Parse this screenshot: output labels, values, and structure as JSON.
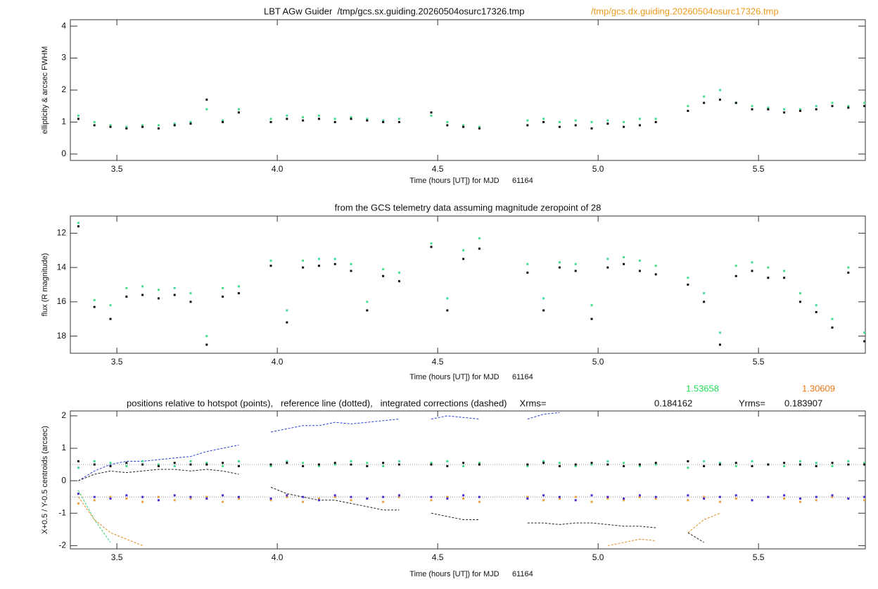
{
  "chart_data": [
    {
      "type": "scatter",
      "title_parts": [
        {
          "text": "LBT AGw Guider  /tmp/gcs.sx.guiding.20260504osurc17326.tmp",
          "color": "#111111"
        },
        {
          "text": "/tmp/gcs.dx.guiding.20260504osurc17326.tmp",
          "color": "#ee9a1a"
        }
      ],
      "x_label": "Time (hours [UT]) for MJD      61164",
      "y_label": "ellipticity & arcsec FWHM",
      "xlim": [
        3.355,
        5.833
      ],
      "ylim": [
        -0.2,
        4.2
      ],
      "xticks": [
        3.5,
        {
          "value": 4,
          "label": "4.0"
        },
        4.5,
        {
          "value": 5,
          "label": "5.0"
        },
        5.5
      ],
      "yticks": [
        0,
        1,
        2,
        3,
        4
      ],
      "x": [
        3.38,
        3.43,
        3.48,
        3.53,
        3.58,
        3.63,
        3.68,
        3.73,
        3.78,
        3.83,
        3.88,
        3.93,
        3.98,
        4.03,
        4.08,
        4.13,
        4.18,
        4.23,
        4.28,
        4.33,
        4.38,
        4.43,
        4.48,
        4.53,
        4.58,
        4.63,
        4.68,
        4.73,
        4.78,
        4.83,
        4.88,
        4.93,
        4.98,
        5.03,
        5.08,
        5.13,
        5.18,
        5.23,
        5.28,
        5.33,
        5.38,
        5.43,
        5.48,
        5.53,
        5.58,
        5.63,
        5.68,
        5.73,
        5.78,
        5.83
      ],
      "series": [
        {
          "mode": "markers",
          "color": "#45dc92",
          "values": [
            1.2,
            1.0,
            0.9,
            0.85,
            0.9,
            0.9,
            0.95,
            1.0,
            1.4,
            1.05,
            1.4,
            null,
            1.1,
            1.2,
            1.15,
            1.2,
            1.1,
            1.15,
            1.1,
            1.05,
            1.1,
            null,
            1.2,
            1.0,
            0.9,
            0.85,
            null,
            null,
            1.05,
            1.1,
            1.0,
            1.05,
            1.0,
            1.05,
            1.0,
            1.1,
            1.1,
            null,
            1.5,
            1.8,
            2.0,
            1.6,
            1.5,
            1.45,
            1.4,
            1.4,
            1.5,
            1.6,
            1.5,
            1.6
          ]
        },
        {
          "mode": "markers",
          "color": "#111111",
          "values": [
            1.1,
            0.9,
            0.85,
            0.8,
            0.85,
            0.8,
            0.9,
            0.95,
            1.7,
            1.0,
            1.3,
            null,
            1.0,
            1.1,
            1.05,
            1.1,
            1.0,
            1.1,
            1.05,
            1.0,
            1.0,
            null,
            1.3,
            0.9,
            0.85,
            0.8,
            null,
            null,
            0.9,
            1.0,
            0.85,
            0.9,
            0.8,
            0.95,
            0.85,
            0.9,
            1.0,
            null,
            1.35,
            1.6,
            1.7,
            1.6,
            1.4,
            1.4,
            1.3,
            1.35,
            1.4,
            1.5,
            1.45,
            1.5
          ]
        }
      ]
    },
    {
      "type": "scatter",
      "title_parts": [
        {
          "text": "from the GCS telemetry data assuming magnitude zeropoint of 28",
          "color": "#111111"
        }
      ],
      "x_label": "Time (hours [UT]) for MJD      61164",
      "y_label": "flux (R magnitude)",
      "xlim": [
        3.355,
        5.833
      ],
      "ylim": [
        19,
        11
      ],
      "xticks": [
        3.5,
        {
          "value": 4,
          "label": "4.0"
        },
        4.5,
        {
          "value": 5,
          "label": "5.0"
        },
        5.5
      ],
      "yticks": [
        12,
        14,
        16,
        18
      ],
      "x": [
        3.38,
        3.43,
        3.48,
        3.53,
        3.58,
        3.63,
        3.68,
        3.73,
        3.78,
        3.83,
        3.88,
        3.93,
        3.98,
        4.03,
        4.08,
        4.13,
        4.18,
        4.23,
        4.28,
        4.33,
        4.38,
        4.43,
        4.48,
        4.53,
        4.58,
        4.63,
        4.68,
        4.73,
        4.78,
        4.83,
        4.88,
        4.93,
        4.98,
        5.03,
        5.08,
        5.13,
        5.18,
        5.23,
        5.28,
        5.33,
        5.38,
        5.43,
        5.48,
        5.53,
        5.58,
        5.63,
        5.68,
        5.73,
        5.78,
        5.83
      ],
      "series": [
        {
          "mode": "markers",
          "color": "#45dc92",
          "values": [
            11.4,
            15.9,
            16.2,
            15.2,
            15.1,
            15.3,
            15.2,
            15.5,
            18.0,
            15.2,
            15.1,
            null,
            13.6,
            16.5,
            13.6,
            13.5,
            13.5,
            13.8,
            16.0,
            14.1,
            14.3,
            null,
            12.6,
            15.8,
            13.0,
            12.3,
            null,
            null,
            13.8,
            15.8,
            13.7,
            13.8,
            16.2,
            13.5,
            13.4,
            13.6,
            13.9,
            null,
            14.6,
            15.5,
            17.8,
            13.9,
            13.7,
            14.0,
            14.2,
            15.5,
            16.2,
            17.0,
            14.0,
            17.8
          ]
        },
        {
          "mode": "markers",
          "color": "#111111",
          "values": [
            11.6,
            16.3,
            17.0,
            15.7,
            15.6,
            15.8,
            15.6,
            16.0,
            18.5,
            15.7,
            15.5,
            null,
            13.9,
            17.2,
            14.0,
            13.9,
            13.8,
            14.2,
            16.5,
            14.5,
            14.8,
            null,
            12.8,
            16.5,
            13.5,
            12.9,
            null,
            null,
            14.3,
            16.5,
            14.0,
            14.2,
            17.0,
            14.0,
            13.8,
            14.2,
            14.4,
            null,
            15.0,
            16.0,
            18.5,
            14.5,
            14.2,
            14.6,
            14.6,
            16.0,
            16.6,
            17.5,
            14.3,
            18.3
          ]
        }
      ]
    },
    {
      "type": "scatter",
      "title_parts": [
        {
          "text": "positions relative to hotspot (points),   reference line (dotted),   integrated corrections (dashed)     Xrms=",
          "color": "#111111"
        }
      ],
      "stats": [
        {
          "value": 0.184162,
          "note": 1.53658,
          "note_color": "#22dd55"
        },
        {
          "label": "Yrms=",
          "value": 0.183907,
          "note": 1.30609,
          "note_color": "#ee7a10"
        }
      ],
      "x_label": "Time (hours [UT]) for MJD      61164",
      "y_label": "X+0.5 / Y-0.5 centroids (arcsec)",
      "xlim": [
        3.355,
        5.833
      ],
      "ylim": [
        -2.1,
        2.15
      ],
      "xticks": [
        3.5,
        {
          "value": 4,
          "label": "4.0"
        },
        4.5,
        {
          "value": 5,
          "label": "5.0"
        },
        5.5
      ],
      "yticks": [
        -2,
        -1,
        0,
        1,
        2
      ],
      "reference_lines": [
        0.5,
        -0.5
      ],
      "x": [
        3.38,
        3.43,
        3.48,
        3.53,
        3.58,
        3.63,
        3.68,
        3.73,
        3.78,
        3.83,
        3.88,
        3.93,
        3.98,
        4.03,
        4.08,
        4.13,
        4.18,
        4.23,
        4.28,
        4.33,
        4.38,
        4.43,
        4.48,
        4.53,
        4.58,
        4.63,
        4.68,
        4.73,
        4.78,
        4.83,
        4.88,
        4.93,
        4.98,
        5.03,
        5.08,
        5.13,
        5.18,
        5.23,
        5.28,
        5.33,
        5.38,
        5.43,
        5.48,
        5.53,
        5.58,
        5.63,
        5.68,
        5.73,
        5.78,
        5.83
      ],
      "series": [
        {
          "mode": "dashed",
          "color": "#2b3bd6",
          "values": [
            0.0,
            0.3,
            0.5,
            0.6,
            0.6,
            0.65,
            0.7,
            0.75,
            0.9,
            1.0,
            1.1,
            null,
            1.5,
            1.6,
            1.7,
            1.7,
            1.8,
            1.75,
            1.8,
            1.85,
            1.9,
            null,
            1.9,
            2.0,
            1.95,
            1.9,
            null,
            null,
            1.9,
            2.05,
            2.1,
            null,
            null,
            null,
            null,
            null,
            null,
            null,
            null,
            null,
            null,
            null,
            null,
            null,
            null,
            null,
            null,
            null,
            null,
            null
          ]
        },
        {
          "mode": "dashed",
          "color": "#222222",
          "values": [
            0.0,
            0.2,
            0.3,
            0.25,
            0.3,
            0.35,
            0.35,
            0.3,
            0.35,
            0.3,
            0.2,
            null,
            -0.2,
            -0.4,
            -0.5,
            -0.6,
            -0.6,
            -0.7,
            -0.8,
            -0.9,
            -0.9,
            null,
            -1.0,
            -1.1,
            -1.2,
            -1.2,
            null,
            null,
            -1.3,
            -1.3,
            -1.35,
            -1.3,
            -1.3,
            -1.35,
            -1.4,
            -1.4,
            -1.45,
            null,
            -1.6,
            -1.9,
            null,
            null,
            null,
            null,
            null,
            null,
            null,
            null,
            null,
            null
          ]
        },
        {
          "mode": "dashed",
          "color": "#2fd070",
          "values": [
            -0.3,
            -1.2,
            -1.9,
            null,
            null,
            null,
            null,
            null,
            null,
            null,
            null,
            null,
            null,
            null,
            null,
            null,
            null,
            null,
            null,
            null,
            null,
            null,
            null,
            null,
            null,
            null,
            null,
            null,
            null,
            null,
            null,
            null,
            null,
            null,
            null,
            null,
            null,
            null,
            null,
            null,
            null,
            null,
            null,
            null,
            null,
            null,
            null,
            null,
            null,
            null
          ]
        },
        {
          "mode": "dashed",
          "color": "#e08a20",
          "values": [
            -0.5,
            -1.2,
            -1.6,
            -1.8,
            -2.0,
            null,
            null,
            null,
            null,
            null,
            null,
            null,
            null,
            null,
            null,
            null,
            null,
            null,
            null,
            null,
            null,
            null,
            null,
            null,
            null,
            null,
            null,
            null,
            null,
            null,
            null,
            null,
            null,
            -2.0,
            -1.9,
            -1.8,
            -1.85,
            null,
            -1.6,
            -1.2,
            -1.0,
            null,
            null,
            null,
            null,
            null,
            null,
            null,
            null,
            null
          ]
        },
        {
          "mode": "markers",
          "color": "#45dc92",
          "values": [
            0.4,
            0.6,
            0.55,
            0.45,
            0.6,
            0.5,
            0.45,
            0.6,
            0.55,
            0.45,
            0.6,
            null,
            0.45,
            0.6,
            0.55,
            0.45,
            0.5,
            0.6,
            0.55,
            0.45,
            0.6,
            null,
            0.55,
            0.6,
            0.45,
            0.55,
            null,
            null,
            0.45,
            0.6,
            0.55,
            0.45,
            0.5,
            0.6,
            0.55,
            0.45,
            0.5,
            null,
            0.4,
            0.6,
            0.55,
            0.45,
            0.6,
            0.5,
            0.45,
            0.6,
            0.55,
            0.45,
            0.6,
            0.55
          ]
        },
        {
          "mode": "markers",
          "color": "#111111",
          "values": [
            0.6,
            0.5,
            0.45,
            0.55,
            0.5,
            0.45,
            0.55,
            0.5,
            0.5,
            0.55,
            0.45,
            null,
            0.5,
            0.55,
            0.45,
            0.5,
            0.55,
            0.5,
            0.45,
            0.55,
            0.5,
            null,
            0.5,
            0.45,
            0.55,
            0.5,
            null,
            null,
            0.5,
            0.55,
            0.45,
            0.5,
            0.55,
            0.5,
            0.45,
            0.5,
            0.55,
            null,
            0.6,
            0.45,
            0.5,
            0.55,
            0.45,
            0.5,
            0.55,
            0.5,
            0.45,
            0.55,
            0.5,
            0.5
          ]
        },
        {
          "mode": "markers",
          "color": "#e8a040",
          "values": [
            -0.7,
            -0.6,
            -0.5,
            -0.55,
            -0.65,
            -0.5,
            -0.6,
            -0.55,
            -0.5,
            -0.65,
            -0.55,
            null,
            -0.6,
            -0.5,
            -0.65,
            -0.55,
            -0.5,
            -0.6,
            -0.55,
            -0.65,
            -0.5,
            null,
            -0.6,
            -0.5,
            -0.55,
            -0.65,
            null,
            null,
            -0.5,
            -0.6,
            -0.55,
            -0.5,
            -0.65,
            -0.55,
            -0.6,
            -0.5,
            -0.55,
            null,
            -0.6,
            -0.5,
            -0.65,
            -0.55,
            -0.6,
            -0.5,
            -0.55,
            -0.65,
            -0.6,
            -0.5,
            -0.55,
            -0.6
          ]
        },
        {
          "mode": "markers",
          "color": "#4a2bd0",
          "values": [
            -0.4,
            -0.5,
            -0.55,
            -0.45,
            -0.5,
            -0.6,
            -0.45,
            -0.5,
            -0.55,
            -0.45,
            -0.5,
            null,
            -0.55,
            -0.45,
            -0.5,
            -0.6,
            -0.45,
            -0.5,
            -0.55,
            -0.5,
            -0.45,
            null,
            -0.5,
            -0.55,
            -0.45,
            -0.5,
            null,
            null,
            -0.55,
            -0.45,
            -0.5,
            -0.6,
            -0.45,
            -0.5,
            -0.55,
            -0.45,
            -0.5,
            null,
            -0.45,
            -0.55,
            -0.5,
            -0.45,
            -0.6,
            -0.5,
            -0.45,
            -0.55,
            -0.5,
            -0.45,
            -0.55,
            -0.5
          ]
        }
      ]
    }
  ]
}
